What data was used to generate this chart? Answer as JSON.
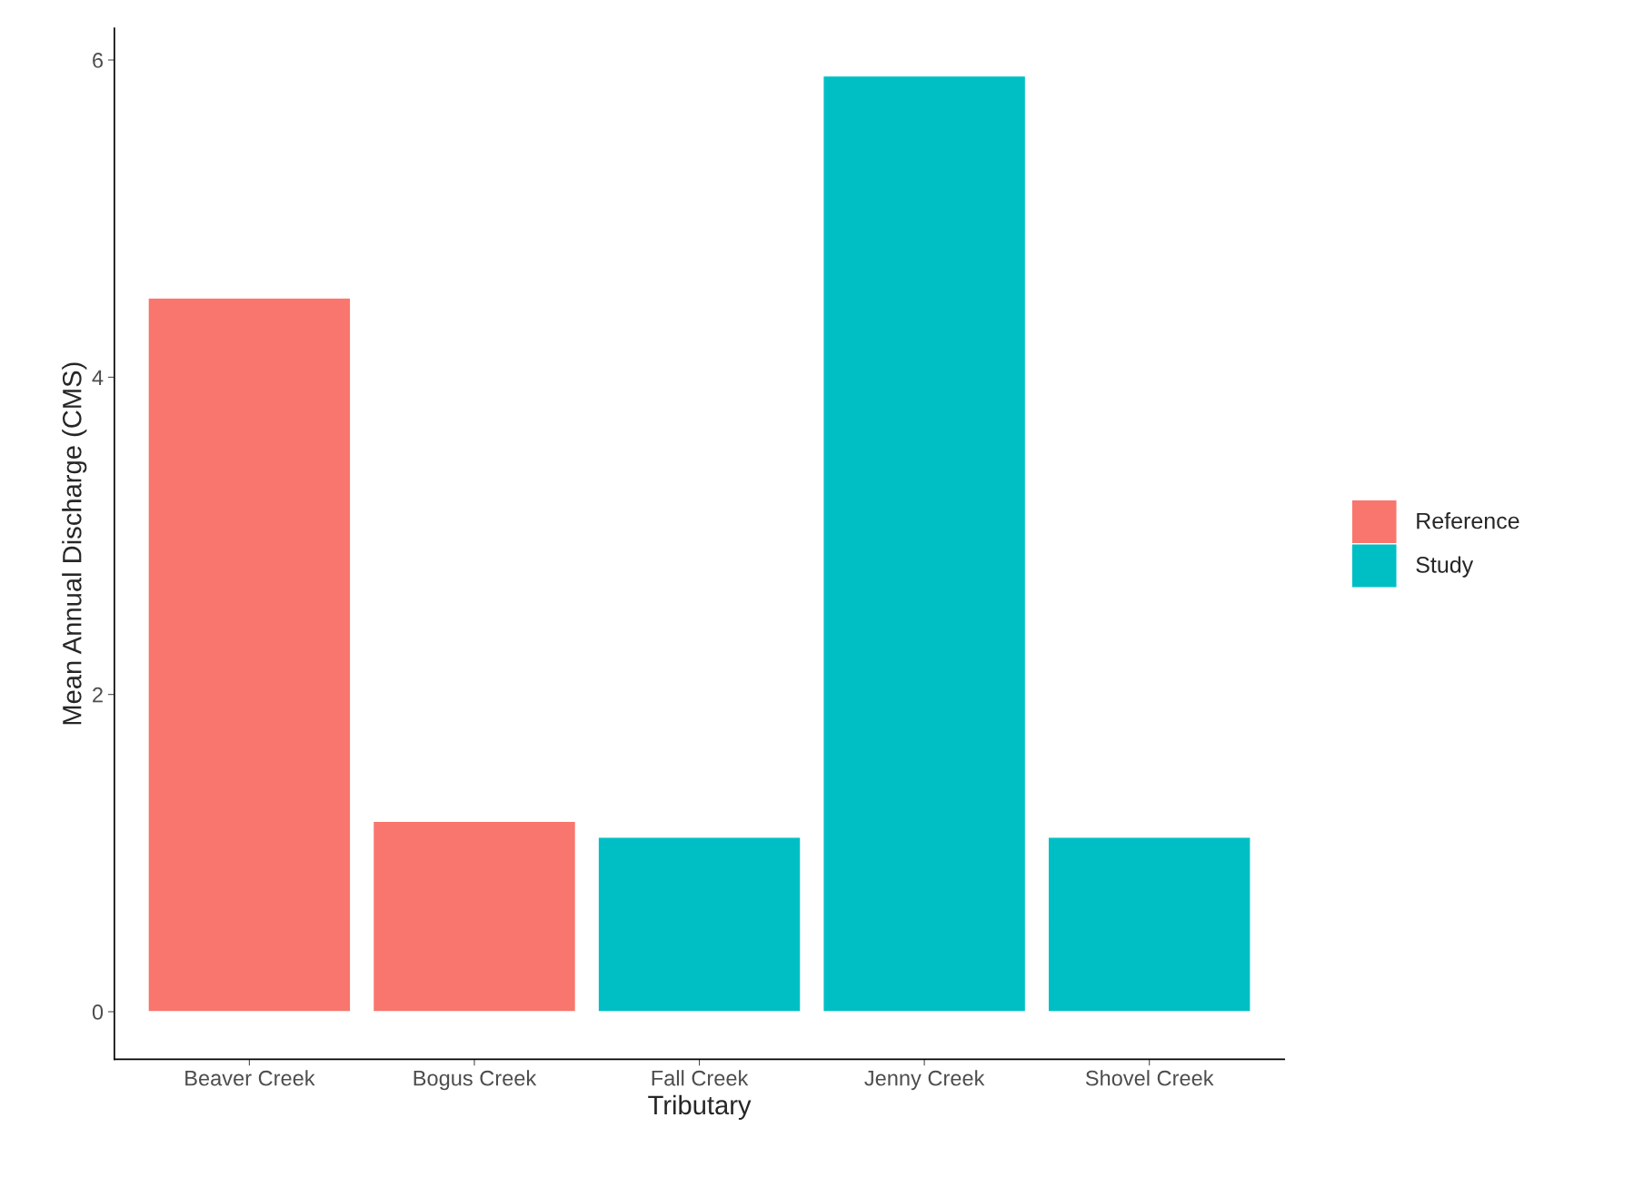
{
  "chart_data": {
    "type": "bar",
    "xlabel": "Tributary",
    "ylabel": "Mean Annual Discharge (CMS)",
    "categories": [
      "Beaver Creek",
      "Bogus Creek",
      "Fall Creek",
      "Jenny Creek",
      "Shovel Creek"
    ],
    "series": [
      {
        "name": "Reference",
        "color": "#f8766d",
        "values": [
          4.5,
          1.2,
          null,
          null,
          null
        ]
      },
      {
        "name": "Study",
        "color": "#00bfc4",
        "values": [
          null,
          null,
          1.1,
          5.9,
          1.1
        ]
      }
    ],
    "ylim": [
      -0.3,
      6.2
    ],
    "yticks": [
      0,
      2,
      4,
      6
    ],
    "grid": false,
    "legend": "right"
  }
}
